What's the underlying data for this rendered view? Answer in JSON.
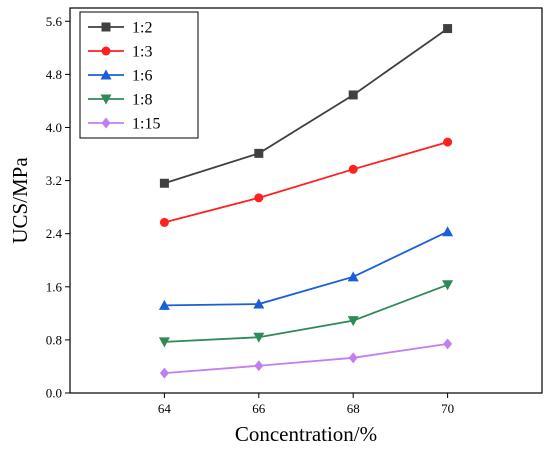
{
  "chart_data": {
    "type": "line",
    "x": [
      64,
      66,
      68,
      70
    ],
    "xlabel": "Concentration/%",
    "ylabel": "UCS/MPa",
    "xlim": [
      62,
      72
    ],
    "ylim": [
      0,
      5.8
    ],
    "xticks": [
      "64",
      "66",
      "68",
      "70"
    ],
    "yticks": [
      "0.0",
      "0.8",
      "1.6",
      "2.4",
      "3.2",
      "4.0",
      "4.8",
      "5.6"
    ],
    "grid": false,
    "legend_position": "top-left",
    "series": [
      {
        "name": "1:2",
        "values": [
          3.16,
          3.61,
          4.49,
          5.49
        ],
        "color": "#404040",
        "marker": "square"
      },
      {
        "name": "1:3",
        "values": [
          2.57,
          2.94,
          3.37,
          3.78
        ],
        "color": "#ff2020",
        "marker": "circle"
      },
      {
        "name": "1:6",
        "values": [
          1.32,
          1.34,
          1.75,
          2.43
        ],
        "color": "#1a5fd6",
        "marker": "triangle-up"
      },
      {
        "name": "1:8",
        "values": [
          0.77,
          0.84,
          1.09,
          1.63
        ],
        "color": "#2e8b57",
        "marker": "triangle-down"
      },
      {
        "name": "1:15",
        "values": [
          0.3,
          0.41,
          0.53,
          0.74
        ],
        "color": "#c27ff0",
        "marker": "diamond"
      }
    ]
  }
}
